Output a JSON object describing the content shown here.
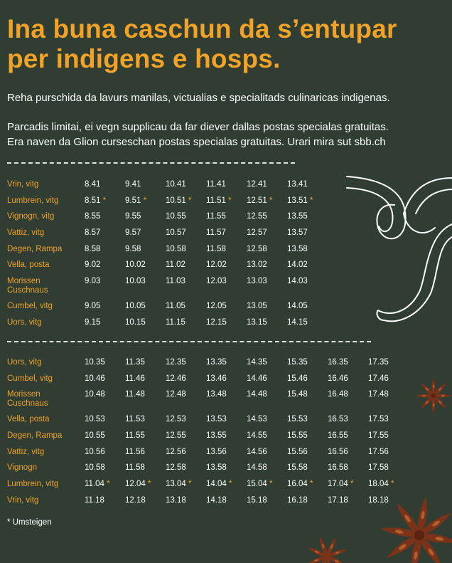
{
  "heading": {
    "line1": "Ina buna caschun da s’entupar",
    "line2": "per indigens e hosps."
  },
  "intro": "Reha purschida da lavurs manilas, victualias e specialitads culinaricas indigenas.",
  "note": {
    "line1": "Parcadis limitai, ei vegn supplicau da far diever dallas postas specialas gratuitas.",
    "line2": "Era naven da Glion curseschan postas specialas gratuitas. Urari mira sut sbb.ch"
  },
  "timetable_outbound": {
    "rows": [
      {
        "stop": [
          "Vrin, vitg"
        ],
        "times": [
          {
            "t": "8.41",
            "s": ""
          },
          {
            "t": "9.41",
            "s": ""
          },
          {
            "t": "10.41",
            "s": ""
          },
          {
            "t": "11.41",
            "s": ""
          },
          {
            "t": "12.41",
            "s": ""
          },
          {
            "t": "13.41",
            "s": ""
          }
        ]
      },
      {
        "stop": [
          "Lumbrein, vitg"
        ],
        "times": [
          {
            "t": "8.51",
            "s": "*"
          },
          {
            "t": "9.51",
            "s": "*"
          },
          {
            "t": "10.51",
            "s": "*"
          },
          {
            "t": "11.51",
            "s": "*"
          },
          {
            "t": "12.51",
            "s": "*"
          },
          {
            "t": "13.51",
            "s": "*"
          }
        ]
      },
      {
        "stop": [
          "Vignogn, vitg"
        ],
        "times": [
          {
            "t": "8.55",
            "s": ""
          },
          {
            "t": "9.55",
            "s": ""
          },
          {
            "t": "10.55",
            "s": ""
          },
          {
            "t": "11.55",
            "s": ""
          },
          {
            "t": "12.55",
            "s": ""
          },
          {
            "t": "13.55",
            "s": ""
          }
        ]
      },
      {
        "stop": [
          "Vattiz, vitg"
        ],
        "times": [
          {
            "t": "8.57",
            "s": ""
          },
          {
            "t": "9.57",
            "s": ""
          },
          {
            "t": "10.57",
            "s": ""
          },
          {
            "t": "11.57",
            "s": ""
          },
          {
            "t": "12.57",
            "s": ""
          },
          {
            "t": "13.57",
            "s": ""
          }
        ]
      },
      {
        "stop": [
          "Degen, Rampa"
        ],
        "times": [
          {
            "t": "8.58",
            "s": ""
          },
          {
            "t": "9.58",
            "s": ""
          },
          {
            "t": "10.58",
            "s": ""
          },
          {
            "t": "11.58",
            "s": ""
          },
          {
            "t": "12.58",
            "s": ""
          },
          {
            "t": "13.58",
            "s": ""
          }
        ]
      },
      {
        "stop": [
          "Vella, posta"
        ],
        "times": [
          {
            "t": "9.02",
            "s": ""
          },
          {
            "t": "10.02",
            "s": ""
          },
          {
            "t": "11.02",
            "s": ""
          },
          {
            "t": "12.02",
            "s": ""
          },
          {
            "t": "13.02",
            "s": ""
          },
          {
            "t": "14.02",
            "s": ""
          }
        ]
      },
      {
        "stop": [
          "Morissen",
          "Cuschnaus"
        ],
        "times": [
          {
            "t": "9.03",
            "s": ""
          },
          {
            "t": "10.03",
            "s": ""
          },
          {
            "t": "11.03",
            "s": ""
          },
          {
            "t": "12.03",
            "s": ""
          },
          {
            "t": "13.03",
            "s": ""
          },
          {
            "t": "14.03",
            "s": ""
          }
        ]
      },
      {
        "stop": [
          "Cumbel, vitg"
        ],
        "times": [
          {
            "t": "9.05",
            "s": ""
          },
          {
            "t": "10.05",
            "s": ""
          },
          {
            "t": "11.05",
            "s": ""
          },
          {
            "t": "12.05",
            "s": ""
          },
          {
            "t": "13.05",
            "s": ""
          },
          {
            "t": "14.05",
            "s": ""
          }
        ]
      },
      {
        "stop": [
          "Uors, vitg"
        ],
        "times": [
          {
            "t": "9.15",
            "s": ""
          },
          {
            "t": "10.15",
            "s": ""
          },
          {
            "t": "11.15",
            "s": ""
          },
          {
            "t": "12.15",
            "s": ""
          },
          {
            "t": "13.15",
            "s": ""
          },
          {
            "t": "14.15",
            "s": ""
          }
        ]
      }
    ]
  },
  "timetable_return": {
    "rows": [
      {
        "stop": [
          "Uors, vitg"
        ],
        "times": [
          {
            "t": "10.35",
            "s": ""
          },
          {
            "t": "11.35",
            "s": ""
          },
          {
            "t": "12.35",
            "s": ""
          },
          {
            "t": "13.35",
            "s": ""
          },
          {
            "t": "14.35",
            "s": ""
          },
          {
            "t": "15.35",
            "s": ""
          },
          {
            "t": "16.35",
            "s": ""
          },
          {
            "t": "17.35",
            "s": ""
          }
        ]
      },
      {
        "stop": [
          "Cumbel, vitg"
        ],
        "times": [
          {
            "t": "10.46",
            "s": ""
          },
          {
            "t": "11.46",
            "s": ""
          },
          {
            "t": "12.46",
            "s": ""
          },
          {
            "t": "13.46",
            "s": ""
          },
          {
            "t": "14.46",
            "s": ""
          },
          {
            "t": "15.46",
            "s": ""
          },
          {
            "t": "16.46",
            "s": ""
          },
          {
            "t": "17.46",
            "s": ""
          }
        ]
      },
      {
        "stop": [
          "Morissen",
          "Cuschnaus"
        ],
        "times": [
          {
            "t": "10.48",
            "s": ""
          },
          {
            "t": "11.48",
            "s": ""
          },
          {
            "t": "12.48",
            "s": ""
          },
          {
            "t": "13.48",
            "s": ""
          },
          {
            "t": "14.48",
            "s": ""
          },
          {
            "t": "15.48",
            "s": ""
          },
          {
            "t": "16.48",
            "s": ""
          },
          {
            "t": "17.48",
            "s": ""
          }
        ]
      },
      {
        "stop": [
          "Vella, posta"
        ],
        "times": [
          {
            "t": "10.53",
            "s": ""
          },
          {
            "t": "11.53",
            "s": ""
          },
          {
            "t": "12.53",
            "s": ""
          },
          {
            "t": "13.53",
            "s": ""
          },
          {
            "t": "14.53",
            "s": ""
          },
          {
            "t": "15.53",
            "s": ""
          },
          {
            "t": "16.53",
            "s": ""
          },
          {
            "t": "17.53",
            "s": ""
          }
        ]
      },
      {
        "stop": [
          "Degen, Rampa"
        ],
        "times": [
          {
            "t": "10.55",
            "s": ""
          },
          {
            "t": "11.55",
            "s": ""
          },
          {
            "t": "12.55",
            "s": ""
          },
          {
            "t": "13.55",
            "s": ""
          },
          {
            "t": "14.55",
            "s": ""
          },
          {
            "t": "15.55",
            "s": ""
          },
          {
            "t": "16.55",
            "s": ""
          },
          {
            "t": "17.55",
            "s": ""
          }
        ]
      },
      {
        "stop": [
          "Vattiz, vitg"
        ],
        "times": [
          {
            "t": "10.56",
            "s": ""
          },
          {
            "t": "11.56",
            "s": ""
          },
          {
            "t": "12.56",
            "s": ""
          },
          {
            "t": "13.56",
            "s": ""
          },
          {
            "t": "14.56",
            "s": ""
          },
          {
            "t": "15.56",
            "s": ""
          },
          {
            "t": "16.56",
            "s": ""
          },
          {
            "t": "17.56",
            "s": ""
          }
        ]
      },
      {
        "stop": [
          "Vignogn"
        ],
        "times": [
          {
            "t": "10.58",
            "s": ""
          },
          {
            "t": "11.58",
            "s": ""
          },
          {
            "t": "12.58",
            "s": ""
          },
          {
            "t": "13.58",
            "s": ""
          },
          {
            "t": "14.58",
            "s": ""
          },
          {
            "t": "15.58",
            "s": ""
          },
          {
            "t": "16.58",
            "s": ""
          },
          {
            "t": "17.58",
            "s": ""
          }
        ]
      },
      {
        "stop": [
          "Lumbrein, vitg"
        ],
        "times": [
          {
            "t": "11.04",
            "s": "*"
          },
          {
            "t": "12.04",
            "s": "*"
          },
          {
            "t": "13.04",
            "s": "*"
          },
          {
            "t": "14.04",
            "s": "*"
          },
          {
            "t": "15.04",
            "s": "*"
          },
          {
            "t": "16.04",
            "s": "*"
          },
          {
            "t": "17.04",
            "s": "*"
          },
          {
            "t": "18.04",
            "s": "*"
          }
        ]
      },
      {
        "stop": [
          "Vrin, vitg"
        ],
        "times": [
          {
            "t": "11.18",
            "s": ""
          },
          {
            "t": "12.18",
            "s": ""
          },
          {
            "t": "13.18",
            "s": ""
          },
          {
            "t": "14.18",
            "s": ""
          },
          {
            "t": "15.18",
            "s": ""
          },
          {
            "t": "16.18",
            "s": ""
          },
          {
            "t": "17.18",
            "s": ""
          },
          {
            "t": "18.18",
            "s": ""
          }
        ]
      }
    ]
  },
  "legend": "* Umsteigen",
  "colors": {
    "background": "#2f3d33",
    "accent": "#f2a227",
    "text": "#ffffff",
    "spice": "#7a3218"
  },
  "icons": [
    "swirl-decoration-icon",
    "star-anise-icon"
  ]
}
